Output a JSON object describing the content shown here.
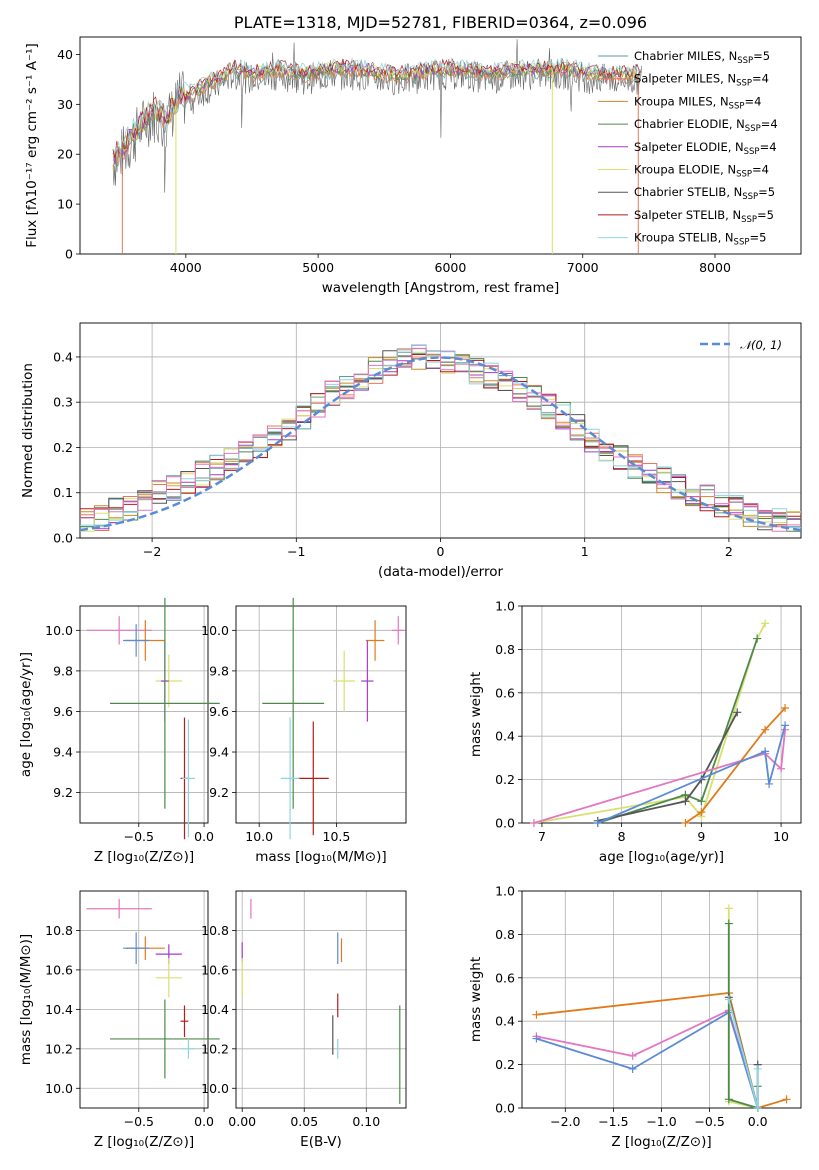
{
  "colors": {
    "c_miles": "#5b9ea0",
    "s_miles": "#e8785a",
    "k_miles": "#c88a2a",
    "c_elodie": "#4c8a4c",
    "s_elodie": "#a63bc4",
    "k_elodie": "#d8e070",
    "c_stelib": "#555555",
    "s_stelib": "#b51c1c",
    "k_stelib": "#8fd4e0",
    "normal": "#5b8bd6",
    "pink": "#e377c2",
    "orange": "#e07b1a",
    "blue": "#5b8bd6",
    "grid": "#b0b0b0"
  },
  "chart_data": [
    {
      "id": "spectrum",
      "type": "line",
      "title": "PLATE=1318, MJD=52781, FIBERID=0364, z=0.096",
      "xlabel": "wavelength [Angstrom, rest frame]",
      "ylabel": "Flux [fλ10⁻¹⁷ erg cm⁻² s⁻¹ A⁻¹]",
      "xlim": [
        3200,
        8650
      ],
      "ylim": [
        0,
        43.5
      ],
      "xticks": [
        4000,
        5000,
        6000,
        7000,
        8000
      ],
      "yticks": [
        0,
        10,
        20,
        30,
        40
      ],
      "data_spectrum": {
        "x": [
          3450,
          3550,
          3650,
          3750,
          3850,
          3950,
          4050,
          4150,
          4250,
          4350,
          4500,
          4700,
          4900,
          5100,
          5300,
          5500,
          5700,
          5900,
          6100,
          6300,
          6500,
          6700,
          6900,
          7100,
          7300,
          7450
        ],
        "y": [
          19,
          22,
          26,
          29,
          27,
          32,
          32,
          34,
          35,
          37,
          36,
          37,
          36,
          37,
          37,
          36,
          36,
          37,
          37,
          36,
          37,
          37,
          37,
          36,
          36,
          36
        ]
      },
      "legend": [
        {
          "label": "Chabrier MILES, N",
          "sub": "SSP",
          "tail": "=5",
          "color": "c_miles"
        },
        {
          "label": "Salpeter MILES, N",
          "sub": "SSP",
          "tail": "=4",
          "color": "s_miles"
        },
        {
          "label": "Kroupa MILES, N",
          "sub": "SSP",
          "tail": "=4",
          "color": "k_miles"
        },
        {
          "label": "Chabrier ELODIE, N",
          "sub": "SSP",
          "tail": "=4",
          "color": "c_elodie"
        },
        {
          "label": "Salpeter ELODIE, N",
          "sub": "SSP",
          "tail": "=4",
          "color": "s_elodie"
        },
        {
          "label": "Kroupa ELODIE, N",
          "sub": "SSP",
          "tail": "=4",
          "color": "k_elodie"
        },
        {
          "label": "Chabrier STELIB, N",
          "sub": "SSP",
          "tail": "=5",
          "color": "c_stelib"
        },
        {
          "label": "Salpeter STELIB, N",
          "sub": "SSP",
          "tail": "=5",
          "color": "s_stelib"
        },
        {
          "label": "Kroupa STELIB, N",
          "sub": "SSP",
          "tail": "=5",
          "color": "k_stelib"
        }
      ]
    },
    {
      "id": "residuals",
      "type": "line",
      "xlabel": "(data-model)/error",
      "ylabel": "Normed distribution",
      "xlim": [
        -2.5,
        2.5
      ],
      "ylim": [
        0,
        0.475
      ],
      "xticks": [
        -2,
        -1,
        0,
        1,
        2
      ],
      "yticks": [
        0.0,
        0.1,
        0.2,
        0.3,
        0.4
      ],
      "legend_label": "𝒩(0, 1)",
      "bin_centers": [
        -2.45,
        -2.35,
        -2.25,
        -2.15,
        -2.05,
        -1.95,
        -1.85,
        -1.75,
        -1.65,
        -1.55,
        -1.45,
        -1.35,
        -1.25,
        -1.15,
        -1.05,
        -0.95,
        -0.85,
        -0.75,
        -0.65,
        -0.55,
        -0.45,
        -0.35,
        -0.25,
        -0.15,
        -0.05,
        0.05,
        0.15,
        0.25,
        0.35,
        0.45,
        0.55,
        0.65,
        0.75,
        0.85,
        0.95,
        1.05,
        1.15,
        1.25,
        1.35,
        1.45,
        1.55,
        1.65,
        1.75,
        1.85,
        1.95,
        2.05,
        2.15,
        2.25,
        2.35,
        2.45
      ],
      "histogram": [
        0.035,
        0.045,
        0.06,
        0.065,
        0.08,
        0.1,
        0.11,
        0.12,
        0.14,
        0.155,
        0.17,
        0.185,
        0.2,
        0.22,
        0.245,
        0.27,
        0.295,
        0.32,
        0.335,
        0.35,
        0.37,
        0.385,
        0.39,
        0.4,
        0.395,
        0.39,
        0.38,
        0.37,
        0.36,
        0.345,
        0.33,
        0.31,
        0.29,
        0.27,
        0.245,
        0.22,
        0.2,
        0.18,
        0.16,
        0.145,
        0.13,
        0.115,
        0.1,
        0.09,
        0.075,
        0.065,
        0.055,
        0.045,
        0.04,
        0.035
      ]
    },
    {
      "id": "age_vs_Z",
      "type": "scatter",
      "xlabel": "Z [log₁₀(Z/Z⊙)]",
      "ylabel": "age  [log₁₀(age/yr)]",
      "xlim": [
        -0.95,
        0.03
      ],
      "ylim": [
        9.05,
        10.12
      ],
      "xticks": [
        -0.5,
        0.0
      ],
      "xticklabels": [
        "−0.5",
        "0.0"
      ],
      "yticks": [
        9.2,
        9.4,
        9.6,
        9.8,
        10.0
      ],
      "points": [
        {
          "x": -0.65,
          "y": 10.0,
          "xerr": 0.25,
          "yerr": 0.07,
          "color": "pink"
        },
        {
          "x": -0.45,
          "y": 9.95,
          "xerr": 0.15,
          "yerr": 0.1,
          "color": "orange"
        },
        {
          "x": -0.52,
          "y": 9.95,
          "xerr": 0.1,
          "yerr": 0.08,
          "color": "blue"
        },
        {
          "x": -0.27,
          "y": 9.75,
          "xerr": 0.1,
          "yerr": 0.13,
          "color": "k_elodie"
        },
        {
          "x": -0.3,
          "y": 9.75,
          "xerr": 0.03,
          "yerr": 0.2,
          "color": "s_elodie"
        },
        {
          "x": -0.3,
          "y": 9.64,
          "xerr": 0.42,
          "yerr": 0.52,
          "color": "c_elodie"
        },
        {
          "x": -0.15,
          "y": 9.27,
          "xerr": 0.03,
          "yerr": 0.3,
          "color": "s_stelib"
        },
        {
          "x": -0.12,
          "y": 9.27,
          "xerr": 0.05,
          "yerr": 0.29,
          "color": "k_stelib"
        }
      ]
    },
    {
      "id": "age_vs_mass",
      "type": "scatter",
      "xlabel": "mass [log₁₀(M/M⊙)]",
      "xlim": [
        9.85,
        10.95
      ],
      "ylim": [
        9.05,
        10.12
      ],
      "xticks": [
        10.0,
        10.5
      ],
      "xticklabels": [
        "10.0",
        "10.5"
      ],
      "yticks": [
        9.2,
        9.4,
        9.6,
        9.8,
        10.0
      ],
      "points": [
        {
          "x": 10.9,
          "y": 10.0,
          "xerr": 0.04,
          "yerr": 0.07,
          "color": "pink"
        },
        {
          "x": 10.75,
          "y": 9.95,
          "xerr": 0.06,
          "yerr": 0.1,
          "color": "orange"
        },
        {
          "x": 10.55,
          "y": 9.75,
          "xerr": 0.07,
          "yerr": 0.15,
          "color": "k_elodie"
        },
        {
          "x": 10.7,
          "y": 9.75,
          "xerr": 0.04,
          "yerr": 0.2,
          "color": "s_elodie"
        },
        {
          "x": 10.22,
          "y": 9.64,
          "xerr": 0.2,
          "yerr": 0.52,
          "color": "c_elodie"
        },
        {
          "x": 10.35,
          "y": 9.27,
          "xerr": 0.1,
          "yerr": 0.28,
          "color": "s_stelib"
        },
        {
          "x": 10.2,
          "y": 9.27,
          "xerr": 0.06,
          "yerr": 0.3,
          "color": "k_stelib"
        }
      ]
    },
    {
      "id": "weight_vs_age",
      "type": "line",
      "xlabel": "age  [log₁₀(age/yr)]",
      "ylabel": "mass weight",
      "xlim": [
        6.75,
        10.25
      ],
      "ylim": [
        0,
        1.0
      ],
      "xticks": [
        7,
        8,
        9,
        10
      ],
      "yticks": [
        0.0,
        0.2,
        0.4,
        0.6,
        0.8,
        1.0
      ],
      "series": [
        {
          "color": "k_elodie",
          "x": [
            6.9,
            8.8,
            9.0,
            9.7,
            9.8
          ],
          "y": [
            0.0,
            0.12,
            0.03,
            0.85,
            0.92
          ]
        },
        {
          "color": "c_elodie",
          "x": [
            7.7,
            8.8,
            9.0,
            9.7
          ],
          "y": [
            0.0,
            0.13,
            0.1,
            0.85
          ]
        },
        {
          "color": "c_stelib",
          "x": [
            7.7,
            8.8,
            9.0,
            9.45
          ],
          "y": [
            0.01,
            0.1,
            0.2,
            0.51
          ]
        },
        {
          "color": "pink",
          "x": [
            6.9,
            9.8,
            10.0,
            10.05
          ],
          "y": [
            0.0,
            0.32,
            0.25,
            0.43
          ]
        },
        {
          "color": "orange",
          "x": [
            8.8,
            9.0,
            9.8,
            10.05
          ],
          "y": [
            0.0,
            0.05,
            0.43,
            0.53
          ]
        },
        {
          "color": "blue",
          "x": [
            7.7,
            9.8,
            9.85,
            10.05
          ],
          "y": [
            0.0,
            0.33,
            0.18,
            0.45
          ]
        }
      ]
    },
    {
      "id": "mass_vs_Z",
      "type": "scatter",
      "xlabel": "Z [log₁₀(Z/Z⊙)]",
      "ylabel": "mass [log₁₀(M/M⊙)]",
      "xlim": [
        -0.95,
        0.03
      ],
      "ylim": [
        9.9,
        11.0
      ],
      "xticks": [
        -0.5,
        0.0
      ],
      "xticklabels": [
        "−0.5",
        "0.0"
      ],
      "yticks": [
        10.0,
        10.2,
        10.4,
        10.6,
        10.8
      ],
      "points": [
        {
          "x": -0.65,
          "y": 10.91,
          "xerr": 0.25,
          "yerr": 0.05,
          "color": "pink"
        },
        {
          "x": -0.45,
          "y": 10.71,
          "xerr": 0.15,
          "yerr": 0.06,
          "color": "orange"
        },
        {
          "x": -0.52,
          "y": 10.71,
          "xerr": 0.1,
          "yerr": 0.08,
          "color": "blue"
        },
        {
          "x": -0.27,
          "y": 10.68,
          "xerr": 0.1,
          "yerr": 0.05,
          "color": "s_elodie"
        },
        {
          "x": -0.27,
          "y": 10.56,
          "xerr": 0.1,
          "yerr": 0.1,
          "color": "k_elodie"
        },
        {
          "x": -0.3,
          "y": 10.25,
          "xerr": 0.42,
          "yerr": 0.2,
          "color": "c_elodie"
        },
        {
          "x": -0.15,
          "y": 10.34,
          "xerr": 0.03,
          "yerr": 0.08,
          "color": "s_stelib"
        },
        {
          "x": -0.12,
          "y": 10.2,
          "xerr": 0.05,
          "yerr": 0.05,
          "color": "k_stelib"
        }
      ]
    },
    {
      "id": "mass_vs_ebv",
      "type": "scatter",
      "xlabel": "E(B-V)",
      "xlim": [
        -0.005,
        0.132
      ],
      "ylim": [
        9.9,
        11.0
      ],
      "xticks": [
        0.0,
        0.05,
        0.1
      ],
      "xticklabels": [
        "0.00",
        "0.05",
        "0.10"
      ],
      "yticks": [
        10.0,
        10.2,
        10.4,
        10.6,
        10.8
      ],
      "points": [
        {
          "x": 0.007,
          "y": 10.91,
          "xerr": 0,
          "yerr": 0.05,
          "color": "pink"
        },
        {
          "x": 0.0,
          "y": 10.69,
          "xerr": 0,
          "yerr": 0.05,
          "color": "s_elodie"
        },
        {
          "x": 0.0,
          "y": 10.56,
          "xerr": 0,
          "yerr": 0.1,
          "color": "k_elodie"
        },
        {
          "x": 0.077,
          "y": 10.71,
          "xerr": 0,
          "yerr": 0.08,
          "color": "blue"
        },
        {
          "x": 0.08,
          "y": 10.7,
          "xerr": 0,
          "yerr": 0.06,
          "color": "orange"
        },
        {
          "x": 0.077,
          "y": 10.42,
          "xerr": 0,
          "yerr": 0.06,
          "color": "s_stelib"
        },
        {
          "x": 0.073,
          "y": 10.27,
          "xerr": 0,
          "yerr": 0.1,
          "color": "c_stelib"
        },
        {
          "x": 0.077,
          "y": 10.2,
          "xerr": 0,
          "yerr": 0.05,
          "color": "k_stelib"
        },
        {
          "x": 0.127,
          "y": 10.17,
          "xerr": 0,
          "yerr": 0.25,
          "color": "c_elodie"
        }
      ]
    },
    {
      "id": "weight_vs_Z",
      "type": "line",
      "xlabel": "Z [log₁₀(Z/Z⊙)]",
      "ylabel": "mass weight",
      "xlim": [
        -2.45,
        0.45
      ],
      "ylim": [
        0,
        1.0
      ],
      "xticks": [
        -2.0,
        -1.5,
        -1.0,
        -0.5,
        0.0
      ],
      "xticklabels": [
        "−2.0",
        "−1.5",
        "−1.0",
        "−0.5",
        "0.0"
      ],
      "yticks": [
        0.0,
        0.2,
        0.4,
        0.6,
        0.8,
        1.0
      ],
      "series": [
        {
          "color": "orange",
          "x": [
            -2.3,
            -0.3,
            0.0,
            0.3
          ],
          "y": [
            0.43,
            0.53,
            0.0,
            0.04
          ]
        },
        {
          "color": "pink",
          "x": [
            -2.3,
            -1.3,
            -0.3,
            0.0
          ],
          "y": [
            0.33,
            0.24,
            0.45,
            0.0
          ]
        },
        {
          "color": "blue",
          "x": [
            -2.3,
            -1.3,
            -0.3,
            0.0
          ],
          "y": [
            0.32,
            0.18,
            0.44,
            0.0
          ]
        },
        {
          "color": "k_elodie",
          "x": [
            -0.3,
            -0.3,
            0.0
          ],
          "y": [
            0.92,
            0.03,
            0.0
          ]
        },
        {
          "color": "c_elodie",
          "x": [
            -0.3,
            -0.3,
            0.0,
            0.0
          ],
          "y": [
            0.85,
            0.04,
            0.0,
            0.1
          ]
        },
        {
          "color": "c_stelib",
          "x": [
            -0.3,
            0.0,
            0.0
          ],
          "y": [
            0.51,
            0.0,
            0.2
          ]
        },
        {
          "color": "k_stelib",
          "x": [
            -0.3,
            0.0,
            0.0
          ],
          "y": [
            0.5,
            0.0,
            0.18
          ]
        }
      ]
    }
  ]
}
